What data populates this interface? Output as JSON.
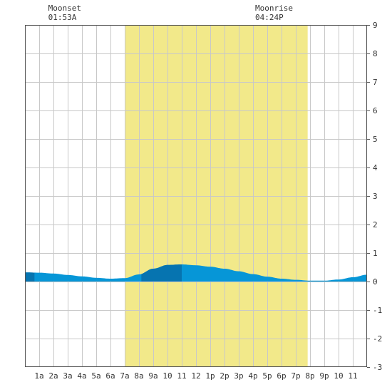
{
  "chart_data": {
    "type": "area",
    "title": "",
    "xlabel": "",
    "ylabel": "",
    "x_domain_hours": [
      0,
      24
    ],
    "ylim": [
      -3,
      9
    ],
    "yticks": [
      9,
      8,
      7,
      6,
      5,
      4,
      3,
      2,
      1,
      0,
      -1,
      -2,
      -3
    ],
    "x_tick_labels": [
      "1a",
      "2a",
      "3a",
      "4a",
      "5a",
      "6a",
      "7a",
      "8a",
      "9a",
      "10",
      "11",
      "12",
      "1p",
      "2p",
      "3p",
      "4p",
      "5p",
      "6p",
      "7p",
      "8p",
      "9p",
      "10",
      "11"
    ],
    "grid": true,
    "daylight_band": {
      "start_time": "7:00 AM",
      "end_time": "7:50 PM"
    },
    "moon_events": [
      {
        "label": "Moonset",
        "time": "01:53A"
      },
      {
        "label": "Moonrise",
        "time": "04:24P"
      }
    ],
    "dark_shade_intervals": [
      {
        "start_time": "0:00 AM",
        "end_time": "0:40 AM"
      },
      {
        "start_time": "8:10 AM",
        "end_time": "11:00 AM"
      }
    ],
    "series": [
      {
        "times": [
          "12:00 AM",
          "1:00 AM",
          "2:00 AM",
          "3:00 AM",
          "4:00 AM",
          "5:00 AM",
          "6:00 AM",
          "7:00 AM",
          "8:00 AM",
          "9:00 AM",
          "10:00 AM",
          "11:00 AM",
          "12:00 PM",
          "1:00 PM",
          "2:00 PM",
          "3:00 PM",
          "4:00 PM",
          "5:00 PM",
          "6:00 PM",
          "7:00 PM",
          "8:00 PM",
          "9:00 PM",
          "10:00 PM",
          "11:00 PM",
          "12:00 AM"
        ],
        "values": [
          0.32,
          0.31,
          0.28,
          0.23,
          0.18,
          0.13,
          0.1,
          0.12,
          0.25,
          0.45,
          0.58,
          0.6,
          0.57,
          0.52,
          0.45,
          0.36,
          0.26,
          0.17,
          0.1,
          0.06,
          0.03,
          0.03,
          0.07,
          0.15,
          0.24
        ]
      }
    ]
  },
  "colors": {
    "daylight": "#f2e98a",
    "tide_fill": "#0696d7",
    "tide_fill_dark": "#0674b0",
    "grid": "#c8c8c8",
    "axis": "#555555",
    "text": "#333333"
  }
}
